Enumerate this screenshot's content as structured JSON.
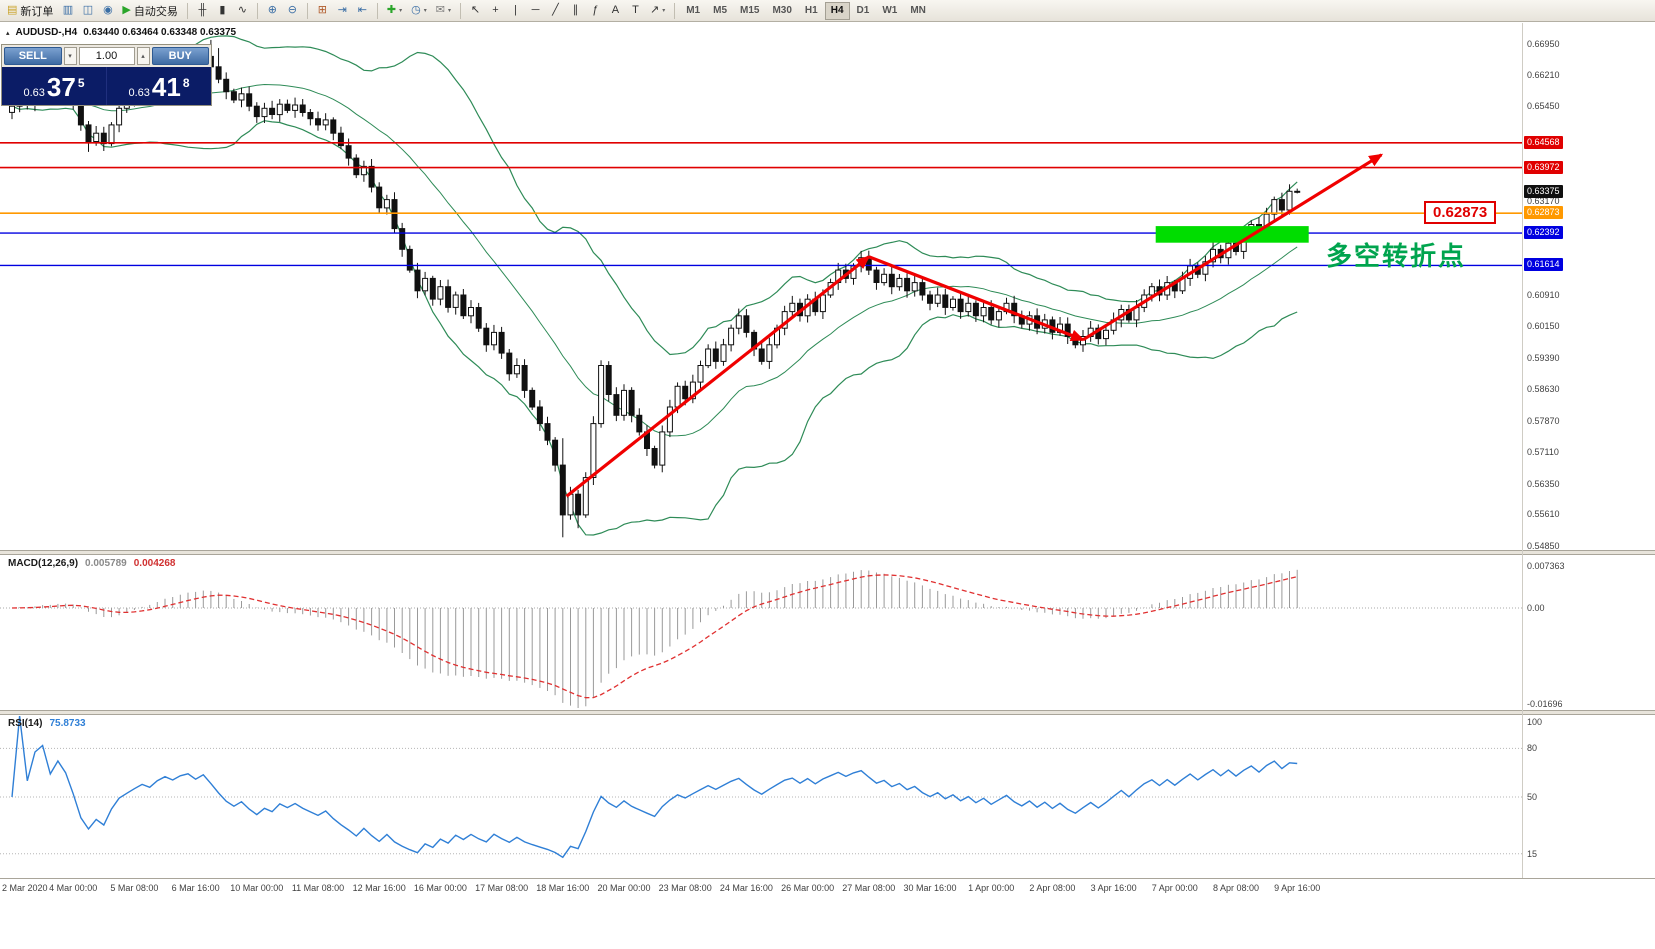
{
  "toolbar": {
    "groups": [
      [
        {
          "name": "new-order-button",
          "glyph": "▤",
          "color": "#c9a227",
          "label": "新订单"
        },
        {
          "name": "market-watch-button",
          "glyph": "▥",
          "color": "#3a6ea5"
        },
        {
          "name": "data-window-button",
          "glyph": "◫",
          "color": "#3a6ea5"
        },
        {
          "name": "navigator-button",
          "glyph": "◉",
          "color": "#3a6ea5"
        },
        {
          "name": "autotrading-button",
          "glyph": "▶",
          "color": "#2aa52a",
          "label": "自动交易"
        }
      ],
      [
        {
          "name": "bar-chart-button",
          "glyph": "╫"
        },
        {
          "name": "candlestick-chart-button",
          "glyph": "▮"
        },
        {
          "name": "line-chart-button",
          "glyph": "∿"
        }
      ],
      [
        {
          "name": "zoom-in-button",
          "glyph": "⊕",
          "color": "#3a6ea5"
        },
        {
          "name": "zoom-out-button",
          "glyph": "⊖",
          "color": "#3a6ea5"
        }
      ],
      [
        {
          "name": "tile-windows-button",
          "glyph": "⊞",
          "color": "#b05a2a"
        },
        {
          "name": "auto-scroll-button",
          "glyph": "⇥",
          "color": "#3a6ea5"
        },
        {
          "name": "chart-shift-button",
          "glyph": "⇤",
          "color": "#3a6ea5"
        }
      ],
      [
        {
          "name": "add-indicator-button",
          "glyph": "✚",
          "color": "#2aa52a",
          "dropdown": true
        },
        {
          "name": "periods-button",
          "glyph": "◷",
          "color": "#3a6ea5",
          "dropdown": true
        },
        {
          "name": "templates-button",
          "glyph": "✉",
          "color": "#7a7a7a",
          "dropdown": true
        }
      ],
      [
        {
          "name": "cursor-button",
          "glyph": "↖"
        },
        {
          "name": "crosshair-button",
          "glyph": "+"
        },
        {
          "name": "vertical-line-button",
          "glyph": "|"
        },
        {
          "name": "horizontal-line-button",
          "glyph": "─"
        },
        {
          "name": "trendline-button",
          "glyph": "╱"
        },
        {
          "name": "channel-button",
          "glyph": "∥"
        },
        {
          "name": "fibonacci-button",
          "glyph": "ƒ"
        },
        {
          "name": "text-button",
          "glyph": "A"
        },
        {
          "name": "label-button",
          "glyph": "T"
        },
        {
          "name": "arrows-button",
          "glyph": "↗",
          "dropdown": true
        }
      ]
    ],
    "timeframes": [
      "M1",
      "M5",
      "M15",
      "M30",
      "H1",
      "H4",
      "D1",
      "W1",
      "MN"
    ],
    "active_timeframe": "H4"
  },
  "chart": {
    "title_symbol": "AUDUSD-,H4",
    "title_ohlc": "0.63440 0.63464 0.63348 0.63375",
    "trade_panel": {
      "sell_label": "SELL",
      "buy_label": "BUY",
      "volume": "1.00",
      "spin_down": "▾",
      "spin_up": "▴",
      "sell_price": {
        "prefix": "0.63",
        "big": "37",
        "sup": "5"
      },
      "buy_price": {
        "prefix": "0.63",
        "big": "41",
        "sup": "8"
      }
    },
    "annotation": {
      "text": "多空转折点",
      "color": "#00a44e"
    },
    "price_flag": {
      "text": "0.62873",
      "price": 0.62873
    }
  },
  "macd": {
    "title": "MACD(12,26,9)",
    "value_main": "0.005789",
    "value_signal": "0.004268",
    "scale": [
      {
        "text": "0.007363",
        "value": 0.007363
      },
      {
        "text": "0.00",
        "value": 0
      },
      {
        "text": "-0.01696",
        "value": -0.01696
      }
    ]
  },
  "rsi": {
    "title": "RSI(14)",
    "value": "75.8733",
    "levels": [
      80,
      50,
      15
    ],
    "scale": [
      {
        "text": "100",
        "value": 100
      },
      {
        "text": "80",
        "value": 80
      },
      {
        "text": "50",
        "value": 50
      },
      {
        "text": "15",
        "value": 15
      }
    ]
  },
  "chart_data": {
    "type": "candlestick",
    "symbol": "AUDUSD-",
    "period": "H4",
    "x_labels": [
      "2 Mar 2020",
      "4 Mar 00:00",
      "5 Mar 08:00",
      "6 Mar 16:00",
      "10 Mar 00:00",
      "11 Mar 08:00",
      "12 Mar 16:00",
      "16 Mar 00:00",
      "17 Mar 08:00",
      "18 Mar 16:00",
      "20 Mar 00:00",
      "23 Mar 08:00",
      "24 Mar 16:00",
      "26 Mar 00:00",
      "27 Mar 08:00",
      "30 Mar 16:00",
      "1 Apr 00:00",
      "2 Apr 08:00",
      "3 Apr 16:00",
      "7 Apr 00:00",
      "8 Apr 08:00",
      "9 Apr 16:00"
    ],
    "bars_per_label": 8,
    "closes": [
      0.6545,
      0.656,
      0.655,
      0.657,
      0.658,
      0.6565,
      0.6585,
      0.6575,
      0.655,
      0.65,
      0.646,
      0.648,
      0.6455,
      0.65,
      0.654,
      0.656,
      0.658,
      0.66,
      0.659,
      0.662,
      0.664,
      0.663,
      0.665,
      0.666,
      0.6645,
      0.6665,
      0.664,
      0.661,
      0.658,
      0.656,
      0.6575,
      0.6545,
      0.652,
      0.654,
      0.6525,
      0.655,
      0.6535,
      0.6548,
      0.653,
      0.6515,
      0.65,
      0.6512,
      0.648,
      0.645,
      0.642,
      0.638,
      0.64,
      0.635,
      0.63,
      0.632,
      0.625,
      0.62,
      0.615,
      0.61,
      0.613,
      0.608,
      0.611,
      0.606,
      0.609,
      0.604,
      0.606,
      0.601,
      0.597,
      0.6,
      0.595,
      0.59,
      0.592,
      0.586,
      0.582,
      0.578,
      0.574,
      0.568,
      0.556,
      0.561,
      0.556,
      0.565,
      0.578,
      0.592,
      0.585,
      0.58,
      0.586,
      0.58,
      0.576,
      0.572,
      0.568,
      0.576,
      0.582,
      0.587,
      0.584,
      0.588,
      0.592,
      0.596,
      0.593,
      0.597,
      0.601,
      0.604,
      0.6,
      0.596,
      0.593,
      0.597,
      0.601,
      0.605,
      0.607,
      0.604,
      0.608,
      0.605,
      0.609,
      0.612,
      0.615,
      0.613,
      0.616,
      0.618,
      0.615,
      0.612,
      0.614,
      0.611,
      0.613,
      0.61,
      0.612,
      0.609,
      0.607,
      0.609,
      0.606,
      0.608,
      0.605,
      0.607,
      0.604,
      0.606,
      0.603,
      0.605,
      0.607,
      0.604,
      0.602,
      0.604,
      0.601,
      0.603,
      0.6,
      0.602,
      0.599,
      0.597,
      0.599,
      0.601,
      0.5985,
      0.6005,
      0.603,
      0.6055,
      0.603,
      0.606,
      0.609,
      0.611,
      0.609,
      0.612,
      0.61,
      0.613,
      0.616,
      0.614,
      0.617,
      0.62,
      0.618,
      0.6215,
      0.6195,
      0.623,
      0.626,
      0.624,
      0.6285,
      0.632,
      0.6295,
      0.634,
      0.63375
    ],
    "high_overrides": {
      "26": 0.6705,
      "27": 0.6685,
      "72": 0.5745,
      "168": 0.63464
    },
    "low_overrides": {
      "10": 0.6435,
      "72": 0.5506,
      "74": 0.5528,
      "168": 0.63348
    },
    "bollinger": {
      "period": 20,
      "deviation": 2,
      "color": "#2E8B57"
    },
    "candle_colors": {
      "bull": "#ffffff",
      "bear": "#111111",
      "outline": "#111111"
    },
    "y_axis_ticks": [
      {
        "text": "0.66950",
        "price": 0.6695
      },
      {
        "text": "0.66210",
        "price": 0.6621
      },
      {
        "text": "0.65450",
        "price": 0.6545
      },
      {
        "text": "0.63170",
        "price": 0.6317
      },
      {
        "text": "0.60910",
        "price": 0.6091
      },
      {
        "text": "0.60150",
        "price": 0.6015
      },
      {
        "text": "0.59390",
        "price": 0.5939
      },
      {
        "text": "0.58630",
        "price": 0.5863
      },
      {
        "text": "0.57870",
        "price": 0.5787
      },
      {
        "text": "0.57110",
        "price": 0.5711
      },
      {
        "text": "0.56350",
        "price": 0.5635
      },
      {
        "text": "0.55610",
        "price": 0.5561
      },
      {
        "text": "0.54850",
        "price": 0.5485
      }
    ],
    "badges": [
      {
        "text": "0.64568",
        "price": 0.64568,
        "bg": "#e00000",
        "fg": "#ffffff"
      },
      {
        "text": "0.63972",
        "price": 0.63972,
        "bg": "#e00000",
        "fg": "#ffffff"
      },
      {
        "text": "0.63375",
        "price": 0.63375,
        "bg": "#101010",
        "fg": "#ffffff"
      },
      {
        "text": "0.62873",
        "price": 0.62873,
        "bg": "#ff9900",
        "fg": "#ffffff"
      },
      {
        "text": "0.62392",
        "price": 0.62392,
        "bg": "#0000e0",
        "fg": "#ffffff"
      },
      {
        "text": "0.61614",
        "price": 0.61614,
        "bg": "#0000e0",
        "fg": "#ffffff"
      }
    ],
    "hlines": [
      {
        "price": 0.64568,
        "color": "#e00000",
        "width": 1.6
      },
      {
        "price": 0.63972,
        "color": "#e00000",
        "width": 1.6
      },
      {
        "price": 0.62873,
        "color": "#ff9900",
        "width": 1.6
      },
      {
        "price": 0.62392,
        "color": "#0000e0",
        "width": 1.4
      },
      {
        "price": 0.61614,
        "color": "#0000e0",
        "width": 1.4
      }
    ],
    "green_zone": {
      "bar_start": 149.5,
      "bar_end": 169.5,
      "price_top": 0.6256,
      "price_bottom": 0.6216,
      "fill": "#00dd00"
    },
    "trend_arrows": {
      "color": "#f00000",
      "width": 3.2,
      "segments": [
        {
          "x1_bar": 72.5,
          "y1_price": 0.5605,
          "x2_bar": 112.0,
          "y2_price": 0.6182
        },
        {
          "x1_bar": 112.0,
          "y1_price": 0.6182,
          "x2_bar": 140.0,
          "y2_price": 0.5982
        },
        {
          "x1_bar": 140.0,
          "y1_price": 0.5982,
          "x2_bar": 179.0,
          "y2_price": 0.6428
        }
      ]
    },
    "macd_panel": {
      "histogram_color": "#9a9a9a",
      "signal_color": "#e03030"
    },
    "rsi_panel": {
      "line_color": "#2f7fd6"
    }
  }
}
